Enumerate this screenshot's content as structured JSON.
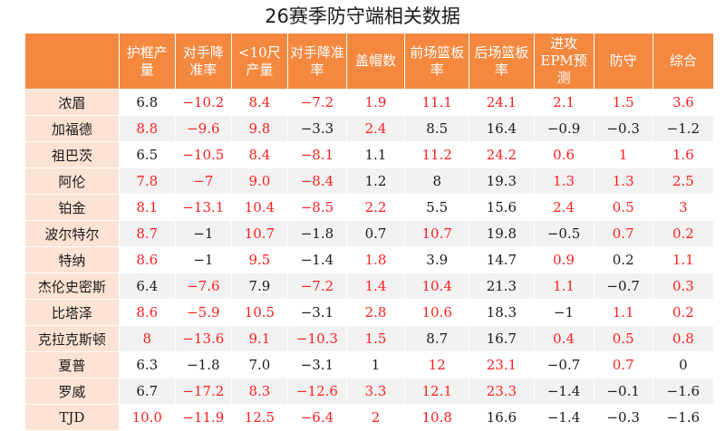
{
  "chart_data": {
    "type": "table",
    "title": "26赛季防守端相关数据",
    "columns": [
      "",
      "护框产量",
      "对手降准率",
      "<10尺产量",
      "对手降准率",
      "盖帽数",
      "前场篮板率",
      "后场篮板率",
      "进攻EPM预测",
      "防守",
      "综合"
    ],
    "rows": [
      {
        "name": "浓眉",
        "values": [
          "6.8",
          "−10.2",
          "8.4",
          "−7.2",
          "1.9",
          "11.1",
          "24.1",
          "2.1",
          "1.5",
          "3.6"
        ],
        "red": [
          false,
          true,
          true,
          true,
          true,
          true,
          true,
          true,
          true,
          true
        ]
      },
      {
        "name": "加福德",
        "values": [
          "8.8",
          "−9.6",
          "9.8",
          "−3.3",
          "2.4",
          "8.5",
          "16.4",
          "−0.9",
          "−0.3",
          "−1.2"
        ],
        "red": [
          true,
          true,
          true,
          false,
          true,
          false,
          false,
          false,
          false,
          false
        ]
      },
      {
        "name": "祖巴茨",
        "values": [
          "6.5",
          "−10.5",
          "8.4",
          "−8.1",
          "1.1",
          "11.2",
          "24.2",
          "0.6",
          "1",
          "1.6"
        ],
        "red": [
          false,
          true,
          true,
          true,
          false,
          true,
          true,
          true,
          true,
          true
        ]
      },
      {
        "name": "阿伦",
        "values": [
          "7.8",
          "−7",
          "9.0",
          "−8.4",
          "1.2",
          "8",
          "19.3",
          "1.3",
          "1.3",
          "2.5"
        ],
        "red": [
          true,
          true,
          true,
          true,
          false,
          false,
          false,
          true,
          true,
          true
        ]
      },
      {
        "name": "铂金",
        "values": [
          "8.1",
          "−13.1",
          "10.4",
          "−8.5",
          "2.2",
          "5.5",
          "15.6",
          "2.4",
          "0.5",
          "3"
        ],
        "red": [
          true,
          true,
          true,
          true,
          true,
          false,
          false,
          true,
          true,
          true
        ]
      },
      {
        "name": "波尔特尔",
        "values": [
          "8.7",
          "−1",
          "10.7",
          "−1.8",
          "0.7",
          "10.7",
          "19.8",
          "−0.5",
          "0.7",
          "0.2"
        ],
        "red": [
          true,
          false,
          true,
          false,
          false,
          true,
          false,
          false,
          true,
          true
        ]
      },
      {
        "name": "特纳",
        "values": [
          "8.6",
          "−1",
          "9.5",
          "−1.4",
          "1.8",
          "3.9",
          "14.7",
          "0.9",
          "0.2",
          "1.1"
        ],
        "red": [
          true,
          false,
          true,
          false,
          true,
          false,
          false,
          true,
          false,
          true
        ]
      },
      {
        "name": "杰伦史密斯",
        "values": [
          "6.4",
          "−7.6",
          "7.9",
          "−7.2",
          "1.4",
          "10.4",
          "21.3",
          "1.1",
          "−0.7",
          "0.3"
        ],
        "red": [
          false,
          true,
          false,
          true,
          true,
          true,
          false,
          true,
          false,
          true
        ]
      },
      {
        "name": "比塔泽",
        "values": [
          "8.6",
          "−5.9",
          "10.5",
          "−3.1",
          "2.8",
          "10.6",
          "18.3",
          "−1",
          "1.1",
          "0.2"
        ],
        "red": [
          true,
          true,
          true,
          false,
          true,
          true,
          false,
          false,
          true,
          true
        ]
      },
      {
        "name": "克拉克斯顿",
        "values": [
          "8",
          "−13.6",
          "9.1",
          "−10.3",
          "1.5",
          "8.7",
          "16.7",
          "0.4",
          "0.5",
          "0.8"
        ],
        "red": [
          true,
          true,
          true,
          true,
          true,
          false,
          false,
          true,
          true,
          true
        ]
      },
      {
        "name": "夏普",
        "values": [
          "6.3",
          "−1.8",
          "7.0",
          "−3.1",
          "1",
          "12",
          "23.1",
          "−0.7",
          "0.7",
          "0"
        ],
        "red": [
          false,
          false,
          false,
          false,
          false,
          true,
          true,
          false,
          true,
          false
        ]
      },
      {
        "name": "罗威",
        "values": [
          "6.7",
          "−17.2",
          "8.3",
          "−12.6",
          "3.3",
          "12.1",
          "23.3",
          "−1.4",
          "−0.1",
          "−1.6"
        ],
        "red": [
          false,
          true,
          true,
          true,
          true,
          true,
          true,
          false,
          false,
          false
        ]
      },
      {
        "name": "TJD",
        "values": [
          "10.0",
          "−11.9",
          "12.5",
          "−6.4",
          "2",
          "10.8",
          "16.6",
          "−1.4",
          "−0.3",
          "−1.6"
        ],
        "red": [
          true,
          true,
          true,
          true,
          true,
          true,
          false,
          false,
          false,
          false
        ]
      }
    ]
  }
}
